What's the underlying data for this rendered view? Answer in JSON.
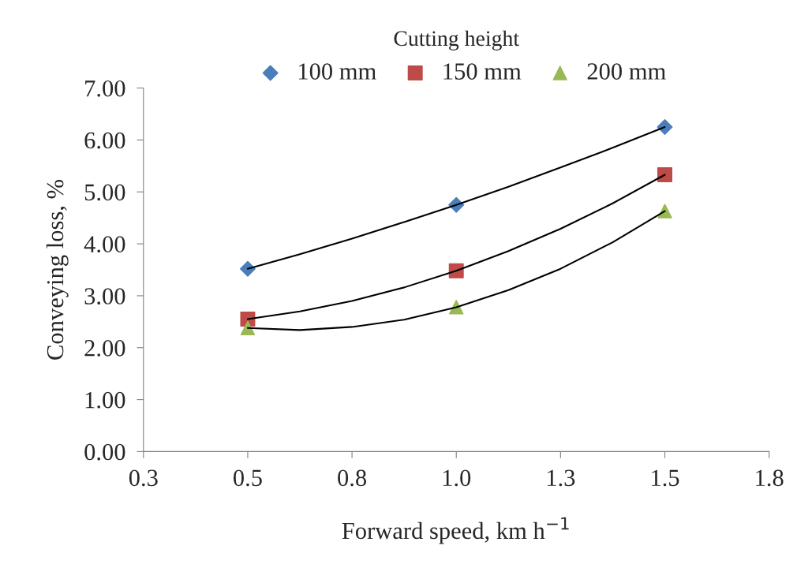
{
  "chart_data": {
    "type": "scatter",
    "xlabel": "Forward speed, km h$^{−1}$",
    "ylabel": "Conveying loss, %",
    "legend_title": "Cutting height",
    "x": [
      0.5,
      1.0,
      1.5
    ],
    "series": [
      {
        "name": "100 mm",
        "color": "#4a7ebb",
        "marker": "diamond",
        "values": [
          3.52,
          4.75,
          6.25
        ]
      },
      {
        "name": "150 mm",
        "color": "#be4b48",
        "marker": "square",
        "values": [
          2.55,
          3.48,
          5.33
        ]
      },
      {
        "name": "200 mm",
        "color": "#98b954",
        "marker": "triangle",
        "values": [
          2.38,
          2.78,
          4.63
        ]
      },
      {
        "type": "line",
        "color": "#000000",
        "marker": "none",
        "x": [
          0.5,
          0.625,
          0.75,
          0.875,
          1.0,
          1.125,
          1.25,
          1.375,
          1.5
        ],
        "values": [
          3.52,
          3.8,
          4.1,
          4.42,
          4.75,
          5.1,
          5.47,
          5.85,
          6.25
        ]
      },
      {
        "type": "line",
        "color": "#000000",
        "marker": "none",
        "x": [
          0.5,
          0.625,
          0.75,
          0.875,
          1.0,
          1.125,
          1.25,
          1.375,
          1.5
        ],
        "values": [
          2.55,
          2.7,
          2.9,
          3.16,
          3.48,
          3.86,
          4.29,
          4.78,
          5.33
        ]
      },
      {
        "type": "line",
        "color": "#000000",
        "marker": "none",
        "x": [
          0.5,
          0.625,
          0.75,
          0.875,
          1.0,
          1.125,
          1.25,
          1.375,
          1.5
        ],
        "values": [
          2.38,
          2.34,
          2.4,
          2.54,
          2.78,
          3.11,
          3.52,
          4.03,
          4.63
        ]
      }
    ],
    "xlim": [
      0.25,
      1.75
    ],
    "xticks": [
      {
        "value": 0.25,
        "label": "0.3"
      },
      0.5,
      {
        "value": 0.75,
        "label": "0.8"
      },
      {
        "value": 1.0,
        "label": "1.0"
      },
      {
        "value": 1.25,
        "label": "1.3"
      },
      1.5,
      {
        "value": 1.75,
        "label": "1.8"
      }
    ],
    "ylim": [
      0,
      7
    ],
    "yticks": [
      {
        "value": 0,
        "label": "0.00"
      },
      {
        "value": 1,
        "label": "1.00"
      },
      {
        "value": 2,
        "label": "2.00"
      },
      {
        "value": 3,
        "label": "3.00"
      },
      {
        "value": 4,
        "label": "4.00"
      },
      {
        "value": 5,
        "label": "5.00"
      },
      {
        "value": 6,
        "label": "6.00"
      },
      {
        "value": 7,
        "label": "7.00"
      }
    ],
    "legend": "top"
  }
}
